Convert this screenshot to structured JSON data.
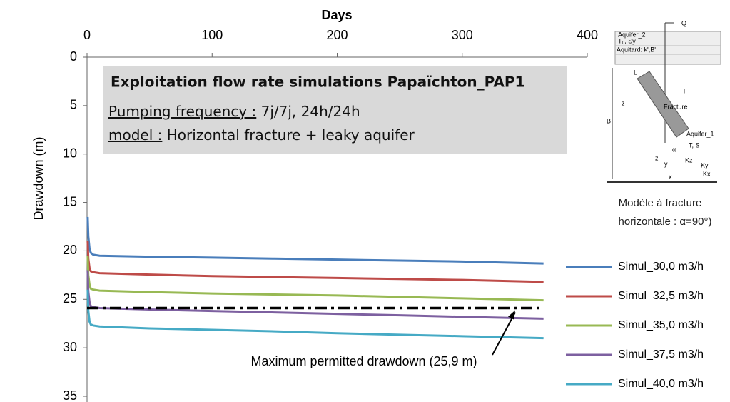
{
  "chart_data": {
    "type": "line",
    "xlabel": "Days",
    "ylabel": "Drawdown  (m)",
    "x": [
      0.5,
      1,
      2,
      3,
      5,
      10,
      50,
      100,
      150,
      200,
      250,
      300,
      365
    ],
    "series": [
      {
        "name": "Simul_30,0 m3/h",
        "color": "#4a7ebb",
        "values": [
          16.5,
          18.5,
          19.8,
          20.2,
          20.4,
          20.5,
          20.6,
          20.7,
          20.8,
          20.9,
          21.0,
          21.1,
          21.3
        ]
      },
      {
        "name": "Simul_32,5 m3/h",
        "color": "#be4b48",
        "values": [
          19,
          20.8,
          21.8,
          22.1,
          22.2,
          22.3,
          22.45,
          22.6,
          22.7,
          22.8,
          22.9,
          23.0,
          23.2
        ]
      },
      {
        "name": "Simul_35,0 m3/h",
        "color": "#98b954",
        "values": [
          20.5,
          22.5,
          23.5,
          23.9,
          24.0,
          24.1,
          24.25,
          24.4,
          24.5,
          24.6,
          24.75,
          24.9,
          25.1
        ]
      },
      {
        "name": "Simul_37,5 m3/h",
        "color": "#7d60a0",
        "values": [
          22,
          24.2,
          25.3,
          25.7,
          25.8,
          25.9,
          26.05,
          26.2,
          26.35,
          26.5,
          26.65,
          26.8,
          27.0
        ]
      },
      {
        "name": "Simul_40,0 m3/h",
        "color": "#46aac5",
        "values": [
          24,
          26.2,
          27.3,
          27.6,
          27.7,
          27.8,
          28.0,
          28.15,
          28.3,
          28.5,
          28.65,
          28.8,
          29.0
        ]
      }
    ],
    "xlim": [
      0,
      400
    ],
    "xticks": [
      0,
      100,
      200,
      300,
      400
    ],
    "ylim": [
      0,
      35
    ],
    "yticks": [
      0,
      5,
      10,
      15,
      20,
      25,
      30,
      35
    ],
    "y_inverted": true,
    "threshold": {
      "value": 25.9,
      "label": "Maximum permitted drawdown (25,9 m)"
    },
    "legend": "lower right",
    "textbox": {
      "title": "Exploitation flow rate simulations Papaïchton_PAP1",
      "line1_key": "Pumping frequency :",
      "line1_value": " 7j/7j, 24h/24h",
      "line2_key": "model :",
      "line2_value": " Horizontal fracture + leaky aquifer"
    }
  },
  "inset": {
    "labels": [
      "Aquifer_2",
      "T₀, Sy",
      "Aquitard: k',B'",
      "Q",
      "L",
      "l",
      "z",
      "Fracture",
      "B",
      "Aquifer_1",
      "T, S",
      "α",
      "z",
      "y",
      "x",
      "Kz",
      "Ky",
      "Kx"
    ],
    "caption": [
      "Modèle à fracture",
      "horizontale : α=90°)"
    ]
  }
}
